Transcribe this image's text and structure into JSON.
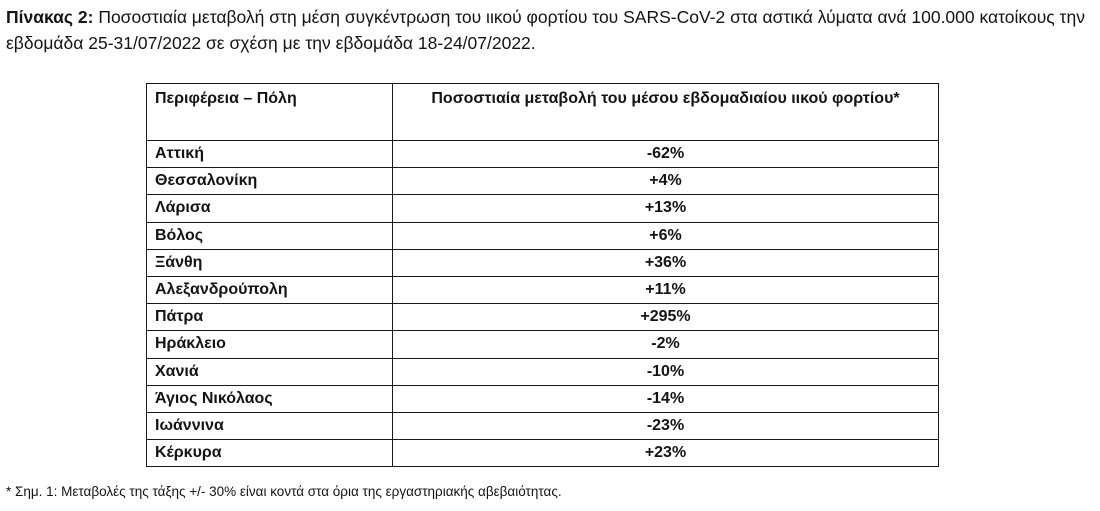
{
  "caption": {
    "label": "Πίνακας 2:",
    "text": " Ποσοστιαία μεταβολή στη μέση συγκέντρωση του ιικού φορτίου του SARS-CoV-2 στα αστικά λύματα ανά 100.000 κατοίκους την εβδομάδα 25-31/07/2022 σε σχέση με την εβδομάδα 18-24/07/2022."
  },
  "table": {
    "headers": {
      "region": "Περιφέρεια – Πόλη",
      "change": "Ποσοστιαία μεταβολή του μέσου εβδομαδιαίου ιικού φορτίου*"
    },
    "rows": [
      {
        "region": "Αττική",
        "change": "-62%"
      },
      {
        "region": "Θεσσαλονίκη",
        "change": "+4%"
      },
      {
        "region": "Λάρισα",
        "change": "+13%"
      },
      {
        "region": "Βόλος",
        "change": "+6%"
      },
      {
        "region": "Ξάνθη",
        "change": "+36%"
      },
      {
        "region": "Αλεξανδρούπολη",
        "change": "+11%"
      },
      {
        "region": "Πάτρα",
        "change": "+295%"
      },
      {
        "region": "Ηράκλειο",
        "change": "-2%"
      },
      {
        "region": "Χανιά",
        "change": "-10%"
      },
      {
        "region": "Άγιος Νικόλαος",
        "change": "-14%"
      },
      {
        "region": "Ιωάννινα",
        "change": "-23%"
      },
      {
        "region": "Κέρκυρα",
        "change": "+23%"
      }
    ]
  },
  "footnote": "* Σημ. 1: Μεταβολές της τάξης +/- 30% είναι κοντά στα όρια της εργαστηριακής αβεβαιότητας."
}
